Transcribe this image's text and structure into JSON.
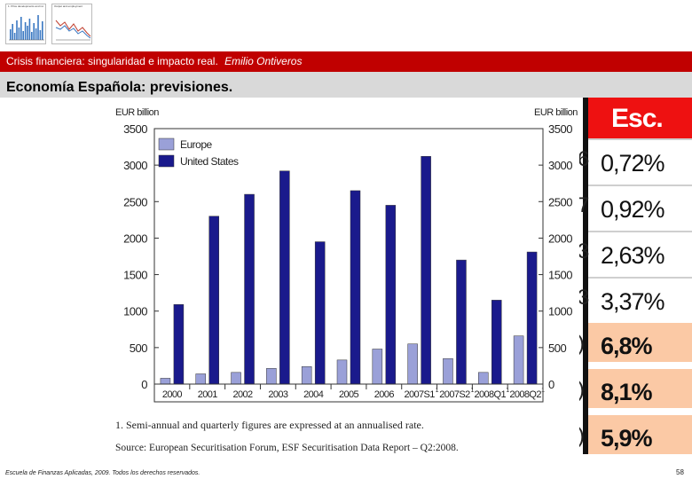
{
  "thumbnails": [
    {
      "title": "1.  Price developments and indicators",
      "bar_color": "#3a78c2"
    },
    {
      "title": "Output and employment",
      "bar_color": "#c04030"
    }
  ],
  "header": {
    "subtitle": "Crisis financiera: singularidad e impacto real.",
    "author": "Emilio Ontiveros",
    "title": "Economía Española: previsiones."
  },
  "chart_data": {
    "type": "bar",
    "title": "",
    "ylabel_left": "EUR billion",
    "ylabel_right": "EUR billion",
    "categories": [
      "2000",
      "2001",
      "2002",
      "2003",
      "2004",
      "2005",
      "2006",
      "2007S1",
      "2007S2",
      "2008Q1",
      "2008Q2"
    ],
    "superscripts": [
      "",
      "",
      "",
      "",
      "",
      "",
      "",
      "1",
      "1",
      "1",
      "1"
    ],
    "series": [
      {
        "name": "Europe",
        "color": "#9aa0d8",
        "values": [
          80,
          140,
          160,
          215,
          240,
          330,
          480,
          550,
          350,
          160,
          660
        ]
      },
      {
        "name": "United States",
        "color": "#1a1a8c",
        "values": [
          1090,
          2300,
          2600,
          2920,
          1950,
          2650,
          2450,
          3120,
          1700,
          1150,
          1810
        ]
      }
    ],
    "ylim": [
      0,
      3500
    ],
    "yticks": [
      0,
      500,
      1000,
      1500,
      2000,
      2500,
      3000,
      3500
    ],
    "footnote": "1.  Semi-annual and quarterly figures are expressed at an annualised rate.",
    "source": "Source:  European Securitisation Forum, ESF Securitisation Data Report – Q2:2008."
  },
  "table": {
    "header": "Esc. Ce",
    "rows": [
      {
        "value": "0,72%",
        "left_frag": "6",
        "style": "light"
      },
      {
        "value": "0,92%",
        "left_frag": "7",
        "style": "light"
      },
      {
        "value": "2,63%",
        "left_frag": "3",
        "style": "light"
      },
      {
        "value": "3,37%",
        "left_frag": "3",
        "style": "light"
      },
      {
        "value": "6,8%",
        "left_frag": ")",
        "style": "peach"
      },
      {
        "value": "8,1%",
        "left_frag": ")",
        "style": "peach"
      },
      {
        "value": "5,9%",
        "left_frag": ")",
        "style": "peach"
      }
    ]
  },
  "footer": {
    "text": "Escuela de Finanzas Aplicadas, 2009. Todos los derechos reservados.",
    "page": "58"
  }
}
